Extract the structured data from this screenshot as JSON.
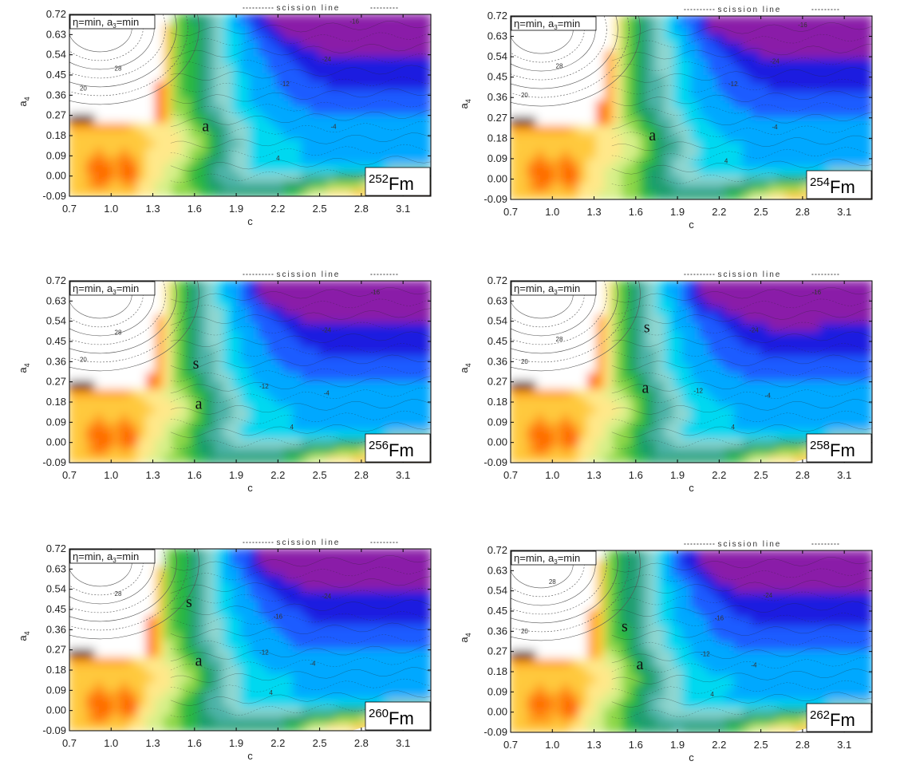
{
  "chart_data": [
    {
      "type": "heatmap",
      "xlabel": "c",
      "ylabel": "a4",
      "xlim": [
        0.7,
        3.3
      ],
      "ylim": [
        -0.09,
        0.72
      ],
      "x_ticks": [
        "0.7",
        "1.0",
        "1.3",
        "1.6",
        "1.9",
        "2.2",
        "2.5",
        "2.8",
        "3.1"
      ],
      "y_ticks": [
        "0.72",
        "0.63",
        "0.54",
        "0.45",
        "0.36",
        "0.27",
        "0.18",
        "0.09",
        "0.00",
        "-0.09"
      ],
      "legend": "η=min, a3=min",
      "scission_label": "scission line",
      "nucleus": {
        "mass": "252",
        "symbol": "Fm"
      },
      "points": [
        {
          "label": "a",
          "x": 1.68,
          "y": 0.2
        }
      ],
      "contour_labels": [
        {
          "text": "28",
          "x": 1.05,
          "y": 0.47
        },
        {
          "text": "20",
          "x": 0.8,
          "y": 0.38
        },
        {
          "text": "-16",
          "x": 2.75,
          "y": 0.68
        },
        {
          "text": "-24",
          "x": 2.55,
          "y": 0.51
        },
        {
          "text": "-12",
          "x": 2.25,
          "y": 0.4
        },
        {
          "text": "-4",
          "x": 2.6,
          "y": 0.21
        },
        {
          "text": "4",
          "x": 2.2,
          "y": 0.07
        }
      ]
    },
    {
      "type": "heatmap",
      "xlabel": "c",
      "ylabel": "a4",
      "xlim": [
        0.7,
        3.3
      ],
      "ylim": [
        -0.09,
        0.72
      ],
      "x_ticks": [
        "0.7",
        "1.0",
        "1.3",
        "1.6",
        "1.9",
        "2.2",
        "2.5",
        "2.8",
        "3.1"
      ],
      "y_ticks": [
        "0.72",
        "0.63",
        "0.54",
        "0.45",
        "0.36",
        "0.27",
        "0.18",
        "0.09",
        "0.00",
        "-0.09"
      ],
      "legend": "η=min, a3=min",
      "scission_label": "scission line",
      "nucleus": {
        "mass": "254",
        "symbol": "Fm"
      },
      "points": [
        {
          "label": "a",
          "x": 1.72,
          "y": 0.17
        }
      ],
      "contour_labels": [
        {
          "text": "28",
          "x": 1.05,
          "y": 0.49
        },
        {
          "text": "20",
          "x": 0.8,
          "y": 0.36
        },
        {
          "text": "-16",
          "x": 2.8,
          "y": 0.67
        },
        {
          "text": "-24",
          "x": 2.6,
          "y": 0.51
        },
        {
          "text": "-12",
          "x": 2.3,
          "y": 0.41
        },
        {
          "text": "-4",
          "x": 2.6,
          "y": 0.22
        },
        {
          "text": "4",
          "x": 2.25,
          "y": 0.07
        }
      ]
    },
    {
      "type": "heatmap",
      "xlabel": "c",
      "ylabel": "a4",
      "xlim": [
        0.7,
        3.3
      ],
      "ylim": [
        -0.09,
        0.72
      ],
      "x_ticks": [
        "0.7",
        "1.0",
        "1.3",
        "1.6",
        "1.9",
        "2.2",
        "2.5",
        "2.8",
        "3.1"
      ],
      "y_ticks": [
        "0.72",
        "0.63",
        "0.54",
        "0.45",
        "0.36",
        "0.27",
        "0.18",
        "0.09",
        "0.00",
        "-0.09"
      ],
      "legend": "η=min, a3=min",
      "scission_label": "scission line",
      "nucleus": {
        "mass": "256",
        "symbol": "Fm"
      },
      "points": [
        {
          "label": "s",
          "x": 1.61,
          "y": 0.33
        },
        {
          "label": "a",
          "x": 1.63,
          "y": 0.15
        }
      ],
      "contour_labels": [
        {
          "text": "28",
          "x": 1.05,
          "y": 0.48
        },
        {
          "text": "20",
          "x": 0.8,
          "y": 0.36
        },
        {
          "text": "-16",
          "x": 2.9,
          "y": 0.66
        },
        {
          "text": "-24",
          "x": 2.55,
          "y": 0.49
        },
        {
          "text": "-12",
          "x": 2.1,
          "y": 0.24
        },
        {
          "text": "-4",
          "x": 2.55,
          "y": 0.21
        },
        {
          "text": "4",
          "x": 2.3,
          "y": 0.06
        }
      ]
    },
    {
      "type": "heatmap",
      "xlabel": "c",
      "ylabel": "a4",
      "xlim": [
        0.7,
        3.3
      ],
      "ylim": [
        -0.09,
        0.72
      ],
      "x_ticks": [
        "0.7",
        "1.0",
        "1.3",
        "1.6",
        "1.9",
        "2.2",
        "2.5",
        "2.8",
        "3.1"
      ],
      "y_ticks": [
        "0.72",
        "0.63",
        "0.54",
        "0.45",
        "0.36",
        "0.27",
        "0.18",
        "0.09",
        "0.00",
        "-0.09"
      ],
      "legend": "η=min, a3=min",
      "scission_label": "scission line",
      "nucleus": {
        "mass": "258",
        "symbol": "Fm"
      },
      "points": [
        {
          "label": "s",
          "x": 1.68,
          "y": 0.49
        },
        {
          "label": "a",
          "x": 1.67,
          "y": 0.22
        }
      ],
      "contour_labels": [
        {
          "text": "28",
          "x": 1.05,
          "y": 0.45
        },
        {
          "text": "20",
          "x": 0.8,
          "y": 0.35
        },
        {
          "text": "-16",
          "x": 2.9,
          "y": 0.66
        },
        {
          "text": "-24",
          "x": 2.45,
          "y": 0.49
        },
        {
          "text": "-12",
          "x": 2.05,
          "y": 0.22
        },
        {
          "text": "-4",
          "x": 2.55,
          "y": 0.2
        },
        {
          "text": "4",
          "x": 2.3,
          "y": 0.06
        }
      ]
    },
    {
      "type": "heatmap",
      "xlabel": "c",
      "ylabel": "a4",
      "xlim": [
        0.7,
        3.3
      ],
      "ylim": [
        -0.09,
        0.72
      ],
      "x_ticks": [
        "0.7",
        "1.0",
        "1.3",
        "1.6",
        "1.9",
        "2.2",
        "2.5",
        "2.8",
        "3.1"
      ],
      "y_ticks": [
        "0.72",
        "0.63",
        "0.54",
        "0.45",
        "0.36",
        "0.27",
        "0.18",
        "0.09",
        "0.00",
        "-0.09"
      ],
      "legend": "η=min, a3=min",
      "scission_label": "scission line",
      "nucleus": {
        "mass": "260",
        "symbol": "Fm"
      },
      "points": [
        {
          "label": "s",
          "x": 1.56,
          "y": 0.46
        },
        {
          "label": "a",
          "x": 1.63,
          "y": 0.2
        }
      ],
      "contour_labels": [
        {
          "text": "28",
          "x": 1.05,
          "y": 0.51
        },
        {
          "text": "20",
          "x": 0.85,
          "y": 0.67
        },
        {
          "text": "-16",
          "x": 2.2,
          "y": 0.41
        },
        {
          "text": "-24",
          "x": 2.55,
          "y": 0.5
        },
        {
          "text": "-12",
          "x": 2.1,
          "y": 0.25
        },
        {
          "text": "-4",
          "x": 2.45,
          "y": 0.2
        },
        {
          "text": "4",
          "x": 2.15,
          "y": 0.07
        }
      ]
    },
    {
      "type": "heatmap",
      "xlabel": "c",
      "ylabel": "a4",
      "xlim": [
        0.7,
        3.3
      ],
      "ylim": [
        -0.09,
        0.72
      ],
      "x_ticks": [
        "0.7",
        "1.0",
        "1.3",
        "1.6",
        "1.9",
        "2.2",
        "2.5",
        "2.8",
        "3.1"
      ],
      "y_ticks": [
        "0.72",
        "0.63",
        "0.54",
        "0.45",
        "0.36",
        "0.27",
        "0.18",
        "0.09",
        "0.00",
        "-0.09"
      ],
      "legend": "η=min, a3=min",
      "scission_label": "scission line",
      "nucleus": {
        "mass": "262",
        "symbol": "Fm"
      },
      "points": [
        {
          "label": "s",
          "x": 1.52,
          "y": 0.36
        },
        {
          "label": "a",
          "x": 1.63,
          "y": 0.19
        }
      ],
      "contour_labels": [
        {
          "text": "28",
          "x": 1.0,
          "y": 0.57
        },
        {
          "text": "20",
          "x": 0.8,
          "y": 0.35
        },
        {
          "text": "-16",
          "x": 2.2,
          "y": 0.41
        },
        {
          "text": "-24",
          "x": 2.55,
          "y": 0.51
        },
        {
          "text": "-12",
          "x": 2.1,
          "y": 0.25
        },
        {
          "text": "-4",
          "x": 2.45,
          "y": 0.2
        },
        {
          "text": "4",
          "x": 2.15,
          "y": 0.07
        }
      ]
    }
  ],
  "colors": {
    "scale": [
      "#3b0000",
      "#8b0000",
      "#d62600",
      "#ff6a00",
      "#ff9f1c",
      "#ffc93c",
      "#ffe88a",
      "#d8f08a",
      "#8fd84a",
      "#29b840",
      "#1e9e6e",
      "#4db3a8",
      "#8fd6d0",
      "#00d8f0",
      "#00a8ff",
      "#1f5bff",
      "#1a1ae0",
      "#8a1aa8"
    ],
    "plateau": "#ffffff"
  }
}
